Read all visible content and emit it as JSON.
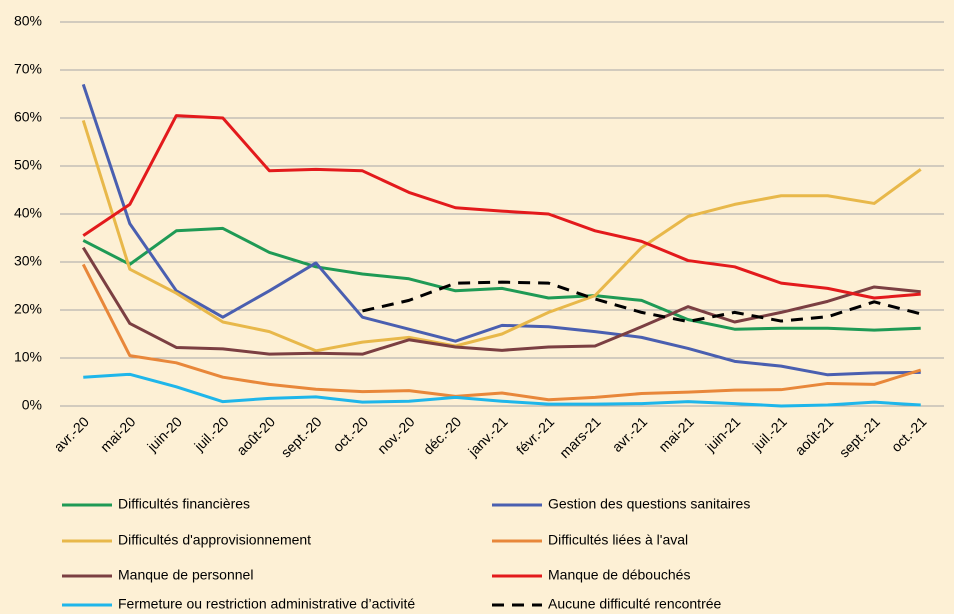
{
  "chart_data": {
    "type": "line",
    "categories": [
      "avr.-20",
      "mai-20",
      "juin-20",
      "juil.-20",
      "août-20",
      "sept.-20",
      "oct.-20",
      "nov.-20",
      "déc.-20",
      "janv.-21",
      "févr.-21",
      "mars-21",
      "avr.-21",
      "mai-21",
      "juin-21",
      "juil.-21",
      "août-21",
      "sept.-21",
      "oct.-21"
    ],
    "ylim": [
      0,
      80
    ],
    "yticks": [
      {
        "value": 0,
        "label": "0%"
      },
      {
        "value": 10,
        "label": "10%"
      },
      {
        "value": 20,
        "label": "20%"
      },
      {
        "value": 30,
        "label": "30%"
      },
      {
        "value": 40,
        "label": "40%"
      },
      {
        "value": 50,
        "label": "50%"
      },
      {
        "value": 60,
        "label": "60%"
      },
      {
        "value": 70,
        "label": "70%"
      },
      {
        "value": 80,
        "label": "80%"
      }
    ],
    "grid": true,
    "series": [
      {
        "name": "Difficultés financières",
        "color": "#1f9a55",
        "values": [
          34.5,
          29.5,
          36.5,
          37,
          32,
          29,
          27.5,
          26.5,
          24,
          24.5,
          22.5,
          23,
          22,
          18,
          16,
          16.2,
          16.2,
          15.8,
          16.2
        ]
      },
      {
        "name": "Gestion des questions sanitaires",
        "color": "#4a5fb0",
        "values": [
          67,
          38,
          24,
          18.5,
          24,
          29.8,
          18.5,
          16,
          13.5,
          16.8,
          16.5,
          15.5,
          14.3,
          12,
          9.3,
          8.3,
          6.5,
          6.9,
          7
        ]
      },
      {
        "name": "Difficultés d'approvisionnement",
        "color": "#e8b84a",
        "values": [
          59.5,
          28.5,
          23.5,
          17.5,
          15.5,
          11.5,
          13.3,
          14.3,
          12.5,
          15,
          19.5,
          23,
          33,
          39.5,
          42,
          43.8,
          43.8,
          42.2,
          49.3
        ]
      },
      {
        "name": "Difficultés liées à l'aval",
        "color": "#e8873a",
        "values": [
          29.5,
          10.5,
          9,
          6,
          4.5,
          3.5,
          3,
          3.2,
          2,
          2.7,
          1.3,
          1.8,
          2.6,
          2.9,
          3.3,
          3.4,
          4.7,
          4.5,
          7.5
        ]
      },
      {
        "name": "Manque de personnel",
        "color": "#7b3f42",
        "values": [
          33,
          17.2,
          12.2,
          11.9,
          10.8,
          11,
          10.8,
          13.8,
          12.3,
          11.6,
          12.3,
          12.5,
          16.5,
          20.7,
          17.5,
          19.5,
          21.8,
          24.8,
          23.8
        ]
      },
      {
        "name": "Manque de débouchés",
        "color": "#e31a1c",
        "values": [
          35.5,
          42,
          60.5,
          60,
          49,
          49.3,
          49,
          44.5,
          41.3,
          40.6,
          40,
          36.5,
          34.3,
          30.3,
          29,
          25.6,
          24.5,
          22.5,
          23.3
        ]
      },
      {
        "name": "Fermeture ou restriction administrative d’activité",
        "color": "#1fb6ea",
        "values": [
          6,
          6.6,
          4,
          0.9,
          1.6,
          1.9,
          0.8,
          1,
          1.8,
          1,
          0.4,
          0.4,
          0.5,
          0.9,
          0.5,
          0,
          0.2,
          0.8,
          0.2
        ]
      },
      {
        "name": "Aucune difficulté rencontrée",
        "color": "#000000",
        "dashed": true,
        "values": [
          null,
          null,
          null,
          null,
          null,
          null,
          19.8,
          22,
          25.6,
          25.8,
          25.6,
          22.3,
          19.5,
          17.6,
          19.5,
          17.7,
          18.6,
          21.7,
          19.2
        ]
      }
    ]
  }
}
